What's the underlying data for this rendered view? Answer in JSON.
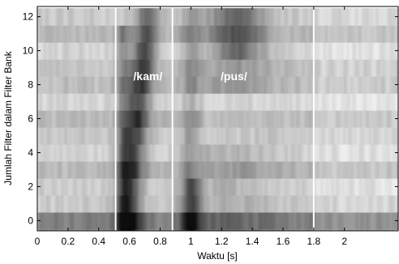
{
  "chart_data": {
    "type": "heatmap",
    "title": "",
    "xlabel": "Waktu [s]",
    "ylabel": "Jumlah Filter dalam  Filter Bank",
    "xlim": [
      0,
      2.35
    ],
    "ylim": [
      -0.6,
      12.6
    ],
    "x_ticks": [
      0,
      0.2,
      0.4,
      0.6,
      0.8,
      1,
      1.2,
      1.4,
      1.6,
      1.8,
      2
    ],
    "x_tick_labels": [
      "0",
      "0.2",
      "0.4",
      "0.6",
      "0.8",
      "1",
      "1.2",
      "1.4",
      "1.6",
      "1.8",
      "2"
    ],
    "y_ticks": [
      0,
      2,
      4,
      6,
      8,
      10,
      12
    ],
    "y_tick_labels": [
      "0",
      "2",
      "4",
      "6",
      "8",
      "10",
      "12"
    ],
    "colormap": "grayscale (dark = high energy)",
    "segment_boundaries": [
      0.51,
      0.88,
      1.8
    ],
    "annotations": [
      {
        "text": "/kam/",
        "x": 0.72,
        "y": 8.5
      },
      {
        "text": "/pus/",
        "x": 1.28,
        "y": 8.5
      }
    ],
    "grid": false
  }
}
